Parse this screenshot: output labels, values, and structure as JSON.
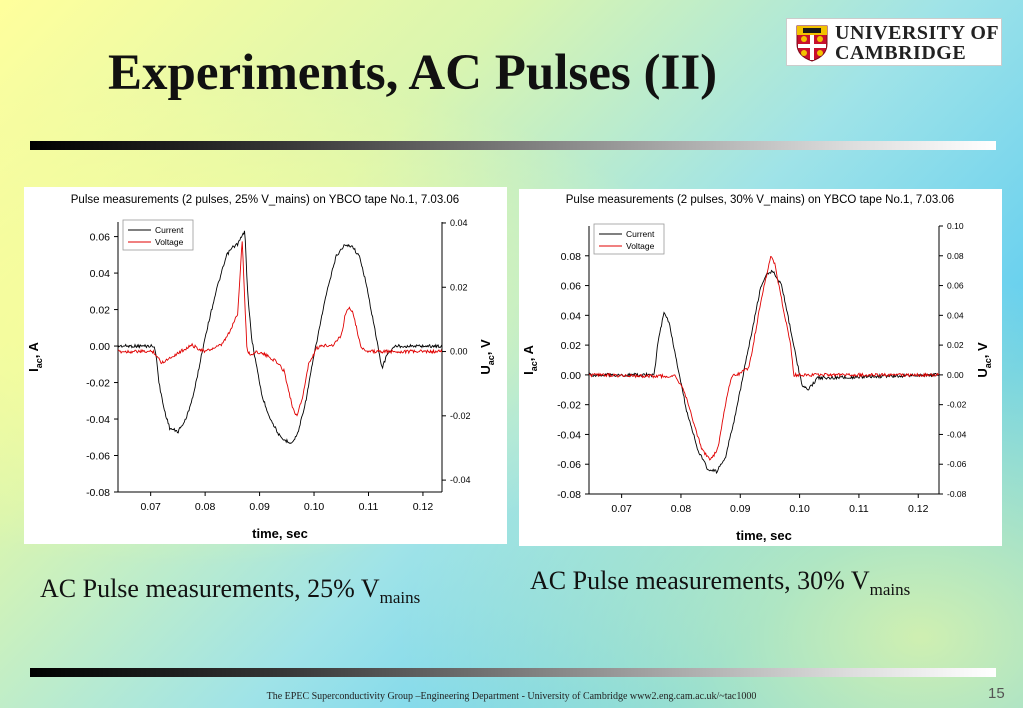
{
  "slide": {
    "title": "Experiments, AC Pulses (II)",
    "logo_line1": "UNIVERSITY OF",
    "logo_line2": "CAMBRIDGE",
    "caption_left_main": "AC Pulse measurements, 25% V",
    "caption_left_sub": "mains",
    "caption_right_main": "AC Pulse measurements, 30% V",
    "caption_right_sub": "mains",
    "footer": "The EPEC Superconductivity Group –Engineering Department -  University of Cambridge www2.eng.cam.ac.uk/~tac1000",
    "page_number": "15"
  },
  "colors": {
    "current": "#000000",
    "voltage": "#e00000"
  },
  "chart_data": [
    {
      "type": "line",
      "title": "Pulse measurements (2 pulses, 25% V_mains) on YBCO tape No.1, 7.03.06",
      "xlabel": "time, sec",
      "ylabel_left": "I",
      "ylabel_left_sub": "ac",
      "ylabel_left_unit": ", A",
      "ylabel_right": "U",
      "ylabel_right_sub": "ac",
      "ylabel_right_unit": ", V",
      "xlim": [
        0.064,
        0.1235
      ],
      "ylim_left": [
        -0.08,
        0.068
      ],
      "ylim_right": [
        -0.0437,
        0.0403
      ],
      "xticks": [
        "0.07",
        "0.08",
        "0.09",
        "0.10",
        "0.11",
        "0.12"
      ],
      "yticks_left": [
        "0.06",
        "0.04",
        "0.02",
        "0.00",
        "-0.02",
        "-0.04",
        "-0.06",
        "-0.08"
      ],
      "yticks_right": [
        "0.04",
        "0.02",
        "0.00",
        "-0.02",
        "-0.04"
      ],
      "legend": [
        "Current",
        "Voltage"
      ],
      "legend_position": "top-left",
      "series": [
        {
          "name": "Current",
          "axis": "left",
          "x": [
            0.064,
            0.0705,
            0.071,
            0.0715,
            0.0725,
            0.0735,
            0.075,
            0.0765,
            0.078,
            0.08,
            0.082,
            0.084,
            0.085,
            0.086,
            0.0873,
            0.0878,
            0.0885,
            0.0895,
            0.0905,
            0.092,
            0.094,
            0.096,
            0.097,
            0.0985,
            0.1,
            0.102,
            0.104,
            0.1055,
            0.107,
            0.1085,
            0.1095,
            0.111,
            0.112,
            0.1125,
            0.1135,
            0.115,
            0.1235
          ],
          "y": [
            0.0,
            0.0,
            -0.004,
            -0.02,
            -0.035,
            -0.045,
            -0.047,
            -0.04,
            -0.025,
            0.005,
            0.03,
            0.05,
            0.054,
            0.056,
            0.063,
            0.03,
            0.005,
            -0.012,
            -0.028,
            -0.04,
            -0.051,
            -0.053,
            -0.048,
            -0.03,
            -0.005,
            0.025,
            0.049,
            0.055,
            0.055,
            0.048,
            0.035,
            0.012,
            -0.005,
            -0.012,
            -0.004,
            0.0,
            0.0
          ]
        },
        {
          "name": "Voltage",
          "axis": "right",
          "x": [
            0.064,
            0.0705,
            0.072,
            0.0735,
            0.0755,
            0.0775,
            0.08,
            0.083,
            0.0845,
            0.086,
            0.0868,
            0.0873,
            0.0877,
            0.0885,
            0.0895,
            0.091,
            0.093,
            0.0945,
            0.096,
            0.0968,
            0.0978,
            0.099,
            0.1005,
            0.102,
            0.1035,
            0.105,
            0.1058,
            0.1065,
            0.1072,
            0.1085,
            0.1095,
            0.1105,
            0.112,
            0.1235
          ],
          "y": [
            0.0,
            0.0,
            -0.0035,
            -0.002,
            0.0,
            0.002,
            0.0,
            0.002,
            0.006,
            0.012,
            0.035,
            0.015,
            0.0,
            -0.001,
            0.0,
            -0.001,
            -0.003,
            -0.006,
            -0.017,
            -0.02,
            -0.015,
            -0.004,
            0.001,
            0.002,
            0.002,
            0.005,
            0.012,
            0.014,
            0.012,
            0.002,
            0.0,
            0.0,
            0.0,
            0.0
          ]
        }
      ]
    },
    {
      "type": "line",
      "title": "Pulse measurements (2 pulses, 30% V_mains) on YBCO tape No.1, 7.03.06",
      "xlabel": "time, sec",
      "ylabel_left": "I",
      "ylabel_left_sub": "ac",
      "ylabel_left_unit": ", A",
      "ylabel_right": "U",
      "ylabel_right_sub": "ac",
      "ylabel_right_unit": ", V",
      "xlim": [
        0.0645,
        0.1235
      ],
      "ylim_left": [
        -0.08,
        0.1
      ],
      "ylim_right": [
        -0.08,
        0.1
      ],
      "xticks": [
        "0.07",
        "0.08",
        "0.09",
        "0.10",
        "0.11",
        "0.12"
      ],
      "yticks_left": [
        "0.08",
        "0.06",
        "0.04",
        "0.02",
        "0.00",
        "-0.02",
        "-0.04",
        "-0.06",
        "-0.08"
      ],
      "yticks_right": [
        "0.10",
        "0.08",
        "0.06",
        "0.04",
        "0.02",
        "0.00",
        "-0.02",
        "-0.04",
        "-0.06",
        "-0.08"
      ],
      "legend": [
        "Current",
        "Voltage"
      ],
      "legend_position": "top-left",
      "series": [
        {
          "name": "Current",
          "axis": "left",
          "x": [
            0.0645,
            0.0755,
            0.0762,
            0.0772,
            0.078,
            0.0795,
            0.081,
            0.083,
            0.0845,
            0.086,
            0.0875,
            0.089,
            0.0905,
            0.092,
            0.0935,
            0.0945,
            0.0955,
            0.097,
            0.0985,
            0.1,
            0.1005,
            0.1015,
            0.103,
            0.1235
          ],
          "y": [
            0.0,
            0.0,
            0.025,
            0.042,
            0.035,
            0.005,
            -0.025,
            -0.052,
            -0.063,
            -0.065,
            -0.055,
            -0.03,
            0.0,
            0.03,
            0.06,
            0.068,
            0.07,
            0.06,
            0.03,
            0.0,
            -0.007,
            -0.01,
            -0.002,
            0.0
          ]
        },
        {
          "name": "Voltage",
          "axis": "right",
          "x": [
            0.0645,
            0.079,
            0.0805,
            0.082,
            0.0835,
            0.085,
            0.0862,
            0.0875,
            0.0885,
            0.0895,
            0.0915,
            0.0935,
            0.0945,
            0.0952,
            0.0958,
            0.0965,
            0.0975,
            0.0985,
            0.099,
            0.1,
            0.1235
          ],
          "y": [
            0.0,
            -0.001,
            -0.01,
            -0.03,
            -0.05,
            -0.057,
            -0.05,
            -0.02,
            -0.001,
            0.0,
            0.005,
            0.05,
            0.068,
            0.08,
            0.075,
            0.06,
            0.04,
            0.02,
            0.0,
            0.0,
            0.0
          ]
        }
      ]
    }
  ]
}
